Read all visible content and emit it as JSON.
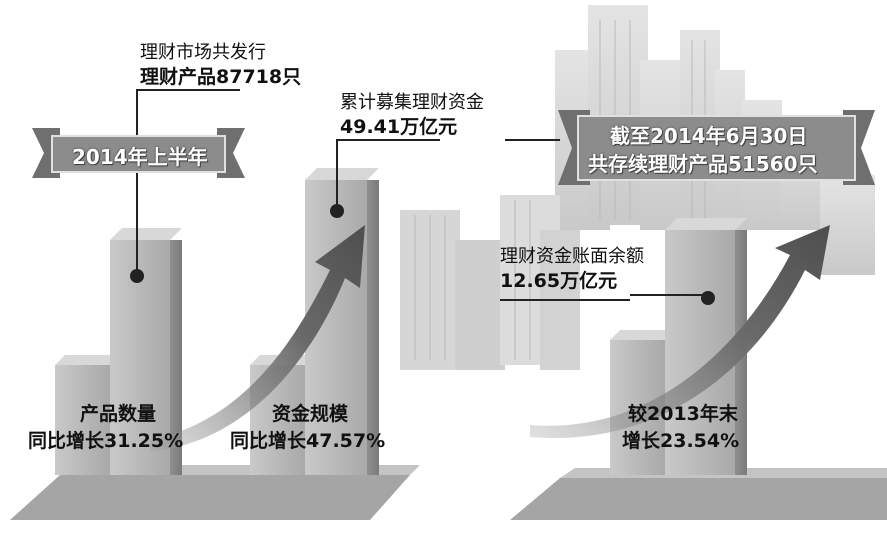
{
  "left_panel": {
    "period_ribbon": "2014年上半年",
    "issued_line1": "理财市场共发行",
    "issued_line2": "理财产品87718只",
    "raised_line1": "累计募集理财资金",
    "raised_line2": "49.41万亿元",
    "bar1_line1": "产品数量",
    "bar1_line2": "同比增长31.25%",
    "bar2_line1": "资金规模",
    "bar2_line2": "同比增长47.57%"
  },
  "right_panel": {
    "ribbon_line1": "截至2014年6月30日",
    "ribbon_line2": "共存续理财产品51560只",
    "balance_line1": "理财资金账面余额",
    "balance_line2": "12.65万亿元",
    "bar_line1": "较2013年末",
    "bar_line2": "增长23.54%"
  },
  "colors": {
    "bar_front": "#b8b8b8",
    "bar_side": "#8a8a8a",
    "arrow": "#6e6e6e",
    "ribbon": "#8c8c8c"
  }
}
